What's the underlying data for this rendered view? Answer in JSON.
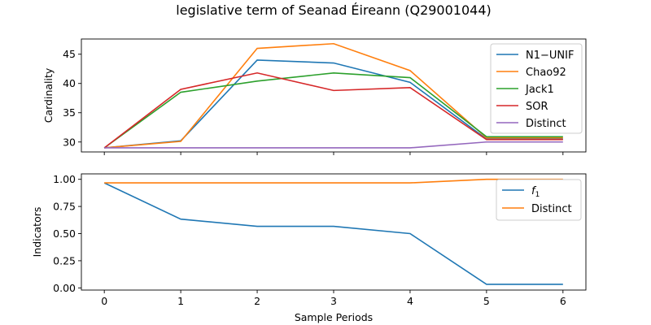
{
  "figure": {
    "title": "legislative term of Seanad Éireann (Q29001044)",
    "xlabel": "Sample Periods"
  },
  "chart_data": [
    {
      "type": "line",
      "ylabel": "Cardinality",
      "x": [
        0,
        1,
        2,
        3,
        4,
        5,
        6
      ],
      "xlim": [
        -0.3,
        6.3
      ],
      "ylim": [
        28.3,
        47.6
      ],
      "yticks": [
        30,
        35,
        40,
        45
      ],
      "grid": false,
      "legend": "top-right",
      "series": [
        {
          "name": "N1−UNIF",
          "color": "#1f77b4",
          "values": [
            29,
            30.2,
            44.0,
            43.5,
            40.2,
            30.5,
            30.5
          ]
        },
        {
          "name": "Chao92",
          "color": "#ff7f0e",
          "values": [
            29,
            30.1,
            46.0,
            46.8,
            42.2,
            30.7,
            30.7
          ]
        },
        {
          "name": "Jack1",
          "color": "#2ca02c",
          "values": [
            29,
            38.5,
            40.4,
            41.8,
            41.0,
            30.9,
            30.9
          ]
        },
        {
          "name": "SOR",
          "color": "#d62728",
          "values": [
            29,
            39.0,
            41.8,
            38.8,
            39.3,
            30.4,
            30.4
          ]
        },
        {
          "name": "Distinct",
          "color": "#9467bd",
          "values": [
            29,
            29,
            29,
            29,
            29,
            30,
            30
          ]
        }
      ]
    },
    {
      "type": "line",
      "ylabel": "Indicators",
      "x": [
        0,
        1,
        2,
        3,
        4,
        5,
        6
      ],
      "xticks": [
        "0",
        "1",
        "2",
        "3",
        "4",
        "5",
        "6"
      ],
      "xlim": [
        -0.3,
        6.3
      ],
      "ylim": [
        -0.02,
        1.05
      ],
      "yticks": [
        "0.00",
        "0.25",
        "0.50",
        "0.75",
        "1.00"
      ],
      "grid": false,
      "legend": "top-right",
      "series": [
        {
          "name": "f",
          "subscript": "1",
          "color": "#1f77b4",
          "values": [
            0.967,
            0.633,
            0.567,
            0.567,
            0.5,
            0.033,
            0.033
          ]
        },
        {
          "name": "Distinct",
          "color": "#ff7f0e",
          "values": [
            0.967,
            0.967,
            0.967,
            0.967,
            0.967,
            1.0,
            1.0
          ]
        }
      ]
    }
  ]
}
